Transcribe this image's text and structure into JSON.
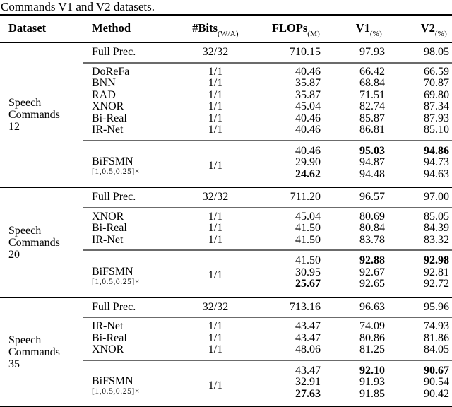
{
  "caption": "Commands V1 and V2 datasets.",
  "colors": {
    "text": "#000000",
    "background": "#ffffff",
    "rule_heavy": "#000000",
    "rule_light": "#6b6b6b"
  },
  "table": {
    "headers": [
      {
        "label": "Dataset",
        "sub": ""
      },
      {
        "label": "Method",
        "sub": ""
      },
      {
        "label": "#Bits",
        "sub": "(W/A)"
      },
      {
        "label": "FLOPs",
        "sub": "(M)"
      },
      {
        "label": "V1",
        "sub": "(%)"
      },
      {
        "label": "V2",
        "sub": "(%)"
      }
    ],
    "sections": [
      {
        "dataset_lines": [
          "Speech",
          "Commands",
          "12"
        ],
        "full_prec": {
          "method": "Full Prec.",
          "bits": "32/32",
          "flops": "710.15",
          "v1": "97.93",
          "v2": "98.05"
        },
        "baselines": [
          {
            "method": "DoReFa",
            "bits": "1/1",
            "flops": "40.46",
            "v1": "66.42",
            "v2": "66.59"
          },
          {
            "method": "BNN",
            "bits": "1/1",
            "flops": "35.87",
            "v1": "68.84",
            "v2": "70.87"
          },
          {
            "method": "RAD",
            "bits": "1/1",
            "flops": "35.87",
            "v1": "71.51",
            "v2": "69.80"
          },
          {
            "method": "XNOR",
            "bits": "1/1",
            "flops": "45.04",
            "v1": "82.74",
            "v2": "87.34"
          },
          {
            "method": "Bi-Real",
            "bits": "1/1",
            "flops": "40.46",
            "v1": "85.87",
            "v2": "87.93"
          },
          {
            "method": "IR-Net",
            "bits": "1/1",
            "flops": "40.46",
            "v1": "86.81",
            "v2": "85.10"
          }
        ],
        "bifsmn": {
          "method": "BiFSMN",
          "method_sub": "[1,0.5,0.25]×",
          "bits": "1/1",
          "rows": [
            {
              "flops": "40.46",
              "v1": "95.03",
              "v2": "94.86",
              "flops_bold": false,
              "v1_bold": true,
              "v2_bold": true
            },
            {
              "flops": "29.90",
              "v1": "94.87",
              "v2": "94.73",
              "flops_bold": false,
              "v1_bold": false,
              "v2_bold": false
            },
            {
              "flops": "24.62",
              "v1": "94.48",
              "v2": "94.63",
              "flops_bold": true,
              "v1_bold": false,
              "v2_bold": false
            }
          ]
        }
      },
      {
        "dataset_lines": [
          "Speech",
          "Commands",
          "20"
        ],
        "full_prec": {
          "method": "Full Prec.",
          "bits": "32/32",
          "flops": "711.20",
          "v1": "96.57",
          "v2": "97.00"
        },
        "baselines": [
          {
            "method": "XNOR",
            "bits": "1/1",
            "flops": "45.04",
            "v1": "80.69",
            "v2": "85.05"
          },
          {
            "method": "Bi-Real",
            "bits": "1/1",
            "flops": "41.50",
            "v1": "80.84",
            "v2": "84.39"
          },
          {
            "method": "IR-Net",
            "bits": "1/1",
            "flops": "41.50",
            "v1": "83.78",
            "v2": "83.32"
          }
        ],
        "bifsmn": {
          "method": "BiFSMN",
          "method_sub": "[1,0.5,0.25]×",
          "bits": "1/1",
          "rows": [
            {
              "flops": "41.50",
              "v1": "92.88",
              "v2": "92.98",
              "flops_bold": false,
              "v1_bold": true,
              "v2_bold": true
            },
            {
              "flops": "30.95",
              "v1": "92.67",
              "v2": "92.81",
              "flops_bold": false,
              "v1_bold": false,
              "v2_bold": false
            },
            {
              "flops": "25.67",
              "v1": "92.65",
              "v2": "92.72",
              "flops_bold": true,
              "v1_bold": false,
              "v2_bold": false
            }
          ]
        }
      },
      {
        "dataset_lines": [
          "Speech",
          "Commands",
          "35"
        ],
        "full_prec": {
          "method": "Full Prec.",
          "bits": "32/32",
          "flops": "713.16",
          "v1": "96.63",
          "v2": "95.96"
        },
        "baselines": [
          {
            "method": "IR-Net",
            "bits": "1/1",
            "flops": "43.47",
            "v1": "74.09",
            "v2": "74.93"
          },
          {
            "method": "Bi-Real",
            "bits": "1/1",
            "flops": "43.47",
            "v1": "80.86",
            "v2": "81.86"
          },
          {
            "method": "XNOR",
            "bits": "1/1",
            "flops": "48.06",
            "v1": "81.25",
            "v2": "84.05"
          }
        ],
        "bifsmn": {
          "method": "BiFSMN",
          "method_sub": "[1,0.5,0.25]×",
          "bits": "1/1",
          "rows": [
            {
              "flops": "43.47",
              "v1": "92.10",
              "v2": "90.67",
              "flops_bold": false,
              "v1_bold": true,
              "v2_bold": true
            },
            {
              "flops": "32.91",
              "v1": "91.93",
              "v2": "90.54",
              "flops_bold": false,
              "v1_bold": false,
              "v2_bold": false
            },
            {
              "flops": "27.63",
              "v1": "91.85",
              "v2": "90.42",
              "flops_bold": true,
              "v1_bold": false,
              "v2_bold": false
            }
          ]
        }
      }
    ]
  }
}
